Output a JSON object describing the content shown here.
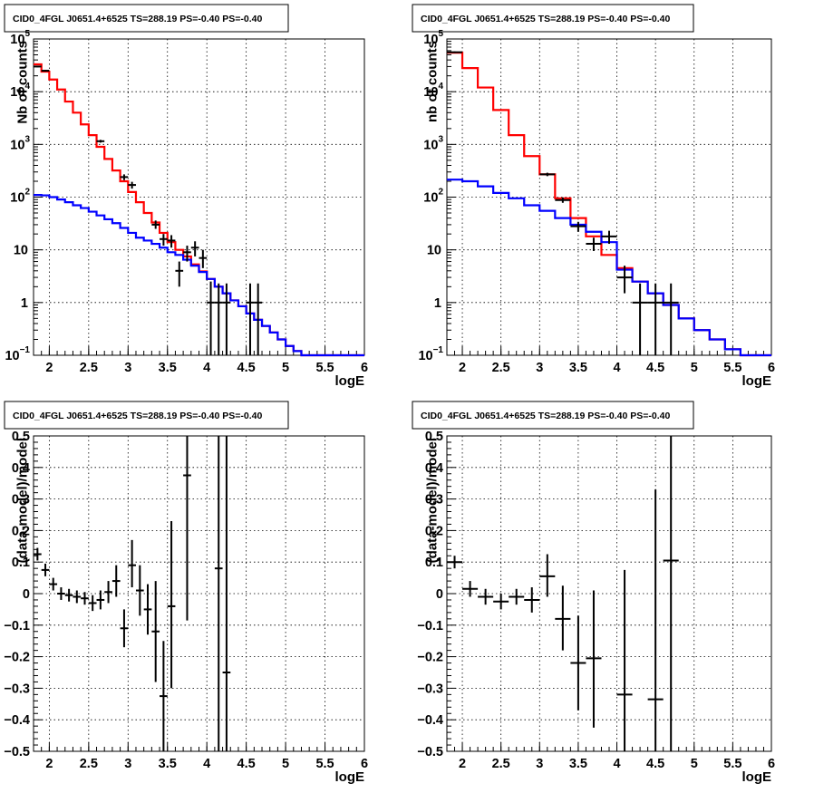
{
  "colors": {
    "data": "#000000",
    "total_model": "#ff0000",
    "source_model": "#0000ff",
    "grid": "#000000"
  },
  "chart_data": [
    {
      "id": "counts-left",
      "type": "line",
      "title": "CID0_4FGL J0651.4+6525 TS=288.19 PS=-0.40 PS=-0.40",
      "xlabel": "logE",
      "ylabel": "Nb of counts",
      "xlim": [
        1.8,
        6
      ],
      "ylim": [
        0.1,
        100000
      ],
      "yscale": "log",
      "grid": true,
      "xticks": [
        "2",
        "2.5",
        "3",
        "3.5",
        "4",
        "4.5",
        "5",
        "5.5",
        "6"
      ],
      "yticks": [
        {
          "value": 0.1,
          "base": "10",
          "exp": "−1"
        },
        {
          "value": 1,
          "label": "1"
        },
        {
          "value": 10,
          "label": "10"
        },
        {
          "value": 100,
          "base": "10",
          "exp": "2"
        },
        {
          "value": 1000,
          "base": "10",
          "exp": "3"
        },
        {
          "value": 10000,
          "base": "10",
          "exp": "4"
        },
        {
          "value": 100000,
          "base": "10",
          "exp": "5"
        }
      ],
      "steps": [
        {
          "name": "total-model",
          "color": "#ff0000",
          "edges": [
            1.8,
            1.9,
            2.0,
            2.1,
            2.2,
            2.3,
            2.4,
            2.5,
            2.6,
            2.7,
            2.8,
            2.9,
            3.0,
            3.1,
            3.2,
            3.3,
            3.4,
            3.5,
            3.6,
            3.7,
            3.8,
            3.9,
            4.0,
            4.1,
            4.2,
            4.3,
            4.4,
            4.5,
            4.6,
            4.7,
            4.8,
            4.9,
            5.0,
            5.1,
            5.2,
            5.3,
            5.4,
            5.5,
            5.6,
            5.7,
            5.8,
            5.9,
            6.0
          ],
          "values": [
            33000,
            24000,
            17000,
            11000,
            6500,
            4000,
            2400,
            1500,
            900,
            530,
            320,
            200,
            125,
            80,
            50,
            33,
            21,
            14,
            10,
            7.5,
            5.3,
            3.9,
            2.8,
            2.0,
            1.5,
            1.1,
            0.85,
            0.62,
            0.47,
            0.36,
            0.27,
            0.2,
            0.15,
            0.12,
            0.1,
            0.1,
            0.1,
            0.1,
            0.1,
            0.1,
            0.1,
            0.1
          ]
        },
        {
          "name": "source-model",
          "color": "#0000ff",
          "edges": [
            1.8,
            1.9,
            2.0,
            2.1,
            2.2,
            2.3,
            2.4,
            2.5,
            2.6,
            2.7,
            2.8,
            2.9,
            3.0,
            3.1,
            3.2,
            3.3,
            3.4,
            3.5,
            3.6,
            3.7,
            3.8,
            3.9,
            4.0,
            4.1,
            4.2,
            4.3,
            4.4,
            4.5,
            4.6,
            4.7,
            4.8,
            4.9,
            5.0,
            5.1,
            5.2,
            5.3,
            5.4,
            5.5,
            5.6,
            5.7,
            5.8,
            5.9,
            6.0
          ],
          "values": [
            110,
            108,
            100,
            90,
            80,
            70,
            62,
            53,
            45,
            38,
            32,
            26,
            21,
            17,
            15,
            13,
            11,
            9,
            8,
            6.5,
            5,
            3.8,
            2.8,
            2.0,
            1.5,
            1.1,
            0.85,
            0.62,
            0.47,
            0.36,
            0.27,
            0.2,
            0.15,
            0.12,
            0.1,
            0.1,
            0.1,
            0.1,
            0.1,
            0.1,
            0.1,
            0.1
          ]
        }
      ],
      "points": [
        {
          "x": 1.85,
          "y": 30000,
          "ylo": 29000,
          "yhi": 31000
        },
        {
          "x": 1.95,
          "y": 25000,
          "ylo": 24000,
          "yhi": 26000
        },
        {
          "x": 2.65,
          "y": 1150,
          "ylo": 1080,
          "yhi": 1220
        },
        {
          "x": 2.95,
          "y": 240,
          "ylo": 210,
          "yhi": 270
        },
        {
          "x": 3.05,
          "y": 170,
          "ylo": 145,
          "yhi": 195
        },
        {
          "x": 3.35,
          "y": 30,
          "ylo": 25,
          "yhi": 36
        },
        {
          "x": 3.45,
          "y": 16,
          "ylo": 12,
          "yhi": 20
        },
        {
          "x": 3.55,
          "y": 15,
          "ylo": 11,
          "yhi": 19
        },
        {
          "x": 3.65,
          "y": 4,
          "ylo": 2,
          "yhi": 6
        },
        {
          "x": 3.75,
          "y": 9,
          "ylo": 6,
          "yhi": 12
        },
        {
          "x": 3.85,
          "y": 11,
          "ylo": 7.5,
          "yhi": 14.5
        },
        {
          "x": 3.95,
          "y": 7,
          "ylo": 4.5,
          "yhi": 10
        },
        {
          "x": 4.05,
          "y": 1,
          "ylo": 0.1,
          "yhi": 2.5
        },
        {
          "x": 4.15,
          "y": 1,
          "ylo": 0.1,
          "yhi": 2.3
        },
        {
          "x": 4.25,
          "y": 1,
          "ylo": 0.1,
          "yhi": 2.3
        },
        {
          "x": 4.55,
          "y": 1,
          "ylo": 0.1,
          "yhi": 2.3
        },
        {
          "x": 4.65,
          "y": 1,
          "ylo": 0.1,
          "yhi": 2.3
        }
      ]
    },
    {
      "id": "counts-right",
      "type": "line",
      "title": "CID0_4FGL J0651.4+6525 TS=288.19 PS=-0.40 PS=-0.40",
      "xlabel": "logE",
      "ylabel": "nb of counts",
      "xlim": [
        1.8,
        6
      ],
      "ylim": [
        0.1,
        100000
      ],
      "yscale": "log",
      "grid": true,
      "xticks": [
        "2",
        "2.5",
        "3",
        "3.5",
        "4",
        "4.5",
        "5",
        "5.5",
        "6"
      ],
      "yticks": [
        {
          "value": 0.1,
          "base": "10",
          "exp": "−1"
        },
        {
          "value": 1,
          "label": "1"
        },
        {
          "value": 10,
          "label": "10"
        },
        {
          "value": 100,
          "base": "10",
          "exp": "2"
        },
        {
          "value": 1000,
          "base": "10",
          "exp": "3"
        },
        {
          "value": 10000,
          "base": "10",
          "exp": "4"
        },
        {
          "value": 100000,
          "base": "10",
          "exp": "5"
        }
      ],
      "steps": [
        {
          "name": "total-model",
          "color": "#ff0000",
          "edges": [
            1.8,
            2.0,
            2.2,
            2.4,
            2.6,
            2.8,
            3.0,
            3.2,
            3.4,
            3.6,
            3.8,
            4.0,
            4.2,
            4.4,
            4.6,
            4.8,
            5.0,
            5.2,
            5.4,
            5.6,
            5.8,
            6.0
          ],
          "values": [
            55000,
            28000,
            12000,
            4500,
            1500,
            600,
            270,
            95,
            40,
            18,
            8,
            4.5,
            2.5,
            1.5,
            0.9,
            0.5,
            0.3,
            0.2,
            0.13,
            0.1,
            0.1
          ]
        },
        {
          "name": "source-model",
          "color": "#0000ff",
          "edges": [
            1.8,
            2.0,
            2.2,
            2.4,
            2.6,
            2.8,
            3.0,
            3.2,
            3.4,
            3.6,
            3.8,
            4.0,
            4.2,
            4.4,
            4.6,
            4.8,
            5.0,
            5.2,
            5.4,
            5.6,
            5.8,
            6.0
          ],
          "values": [
            215,
            200,
            160,
            120,
            95,
            70,
            55,
            40,
            30,
            22,
            14,
            4.2,
            2.5,
            1.5,
            0.9,
            0.5,
            0.3,
            0.2,
            0.13,
            0.1,
            0.1
          ]
        }
      ],
      "points": [
        {
          "x": 1.9,
          "y": 56000,
          "ylo": 54000,
          "yhi": 58000
        },
        {
          "x": 3.1,
          "y": 270,
          "ylo": 250,
          "yhi": 290
        },
        {
          "x": 3.3,
          "y": 88,
          "ylo": 78,
          "yhi": 98
        },
        {
          "x": 3.5,
          "y": 28,
          "ylo": 22,
          "yhi": 34
        },
        {
          "x": 3.7,
          "y": 13,
          "ylo": 9.5,
          "yhi": 17
        },
        {
          "x": 3.9,
          "y": 18,
          "ylo": 13,
          "yhi": 23
        },
        {
          "x": 4.1,
          "y": 3,
          "ylo": 1.5,
          "yhi": 5
        },
        {
          "x": 4.3,
          "y": 1,
          "ylo": 0.1,
          "yhi": 2.3
        },
        {
          "x": 4.5,
          "y": 1,
          "ylo": 0.1,
          "yhi": 2.3
        },
        {
          "x": 4.7,
          "y": 1,
          "ylo": 0.1,
          "yhi": 2.3
        }
      ]
    },
    {
      "id": "residual-left",
      "type": "scatter",
      "title": "CID0_4FGL J0651.4+6525 TS=288.19 PS=-0.40 PS=-0.40",
      "xlabel": "logE",
      "ylabel": "(data-model)/model",
      "xlim": [
        1.8,
        6
      ],
      "ylim": [
        -0.5,
        0.5
      ],
      "yscale": "linear",
      "grid": true,
      "xticks": [
        "2",
        "2.5",
        "3",
        "3.5",
        "4",
        "4.5",
        "5",
        "5.5",
        "6"
      ],
      "yticks": [
        "−0.5",
        "−0.4",
        "−0.3",
        "−0.2",
        "−0.1",
        "0",
        "0.1",
        "0.2",
        "0.3",
        "0.4",
        "0.5"
      ],
      "points": [
        {
          "x": 1.85,
          "y": 0.125,
          "ylo": 0.105,
          "yhi": 0.145,
          "xw": 0.05
        },
        {
          "x": 1.95,
          "y": 0.075,
          "ylo": 0.055,
          "yhi": 0.095,
          "xw": 0.05
        },
        {
          "x": 2.05,
          "y": 0.03,
          "ylo": 0.01,
          "yhi": 0.05,
          "xw": 0.05
        },
        {
          "x": 2.15,
          "y": 0.0,
          "ylo": -0.02,
          "yhi": 0.02,
          "xw": 0.05
        },
        {
          "x": 2.25,
          "y": -0.005,
          "ylo": -0.025,
          "yhi": 0.015,
          "xw": 0.05
        },
        {
          "x": 2.35,
          "y": -0.01,
          "ylo": -0.03,
          "yhi": 0.01,
          "xw": 0.05
        },
        {
          "x": 2.45,
          "y": -0.015,
          "ylo": -0.035,
          "yhi": 0.005,
          "xw": 0.05
        },
        {
          "x": 2.55,
          "y": -0.03,
          "ylo": -0.055,
          "yhi": -0.005,
          "xw": 0.05
        },
        {
          "x": 2.65,
          "y": -0.02,
          "ylo": -0.05,
          "yhi": 0.01,
          "xw": 0.05
        },
        {
          "x": 2.75,
          "y": 0.005,
          "ylo": -0.03,
          "yhi": 0.04,
          "xw": 0.05
        },
        {
          "x": 2.85,
          "y": 0.04,
          "ylo": -0.01,
          "yhi": 0.09,
          "xw": 0.05
        },
        {
          "x": 2.95,
          "y": -0.11,
          "ylo": -0.17,
          "yhi": -0.05,
          "xw": 0.05
        },
        {
          "x": 3.05,
          "y": 0.09,
          "ylo": 0.02,
          "yhi": 0.17,
          "xw": 0.05
        },
        {
          "x": 3.15,
          "y": 0.01,
          "ylo": -0.07,
          "yhi": 0.09,
          "xw": 0.05
        },
        {
          "x": 3.25,
          "y": -0.05,
          "ylo": -0.13,
          "yhi": 0.03,
          "xw": 0.05
        },
        {
          "x": 3.35,
          "y": -0.12,
          "ylo": -0.28,
          "yhi": 0.04,
          "xw": 0.05
        },
        {
          "x": 3.45,
          "y": -0.325,
          "ylo": -0.5,
          "yhi": -0.15,
          "xw": 0.05
        },
        {
          "x": 3.55,
          "y": -0.04,
          "ylo": -0.3,
          "yhi": 0.23,
          "xw": 0.05
        },
        {
          "x": 3.75,
          "y": 0.375,
          "ylo": -0.085,
          "yhi": 0.5,
          "xw": 0.05
        },
        {
          "x": 4.15,
          "y": 0.08,
          "ylo": -0.5,
          "yhi": 0.5,
          "xw": 0.05
        },
        {
          "x": 4.25,
          "y": -0.25,
          "ylo": -0.5,
          "yhi": 0.5,
          "xw": 0.05
        }
      ]
    },
    {
      "id": "residual-right",
      "type": "scatter",
      "title": "CID0_4FGL J0651.4+6525 TS=288.19 PS=-0.40 PS=-0.40",
      "xlabel": "logE",
      "ylabel": "(data-model)/model",
      "xlim": [
        1.8,
        6
      ],
      "ylim": [
        -0.5,
        0.5
      ],
      "yscale": "linear",
      "grid": true,
      "xticks": [
        "2",
        "2.5",
        "3",
        "3.5",
        "4",
        "4.5",
        "5",
        "5.5",
        "6"
      ],
      "yticks": [
        "−0.5",
        "−0.4",
        "−0.3",
        "−0.2",
        "−0.1",
        "0",
        "0.1",
        "0.2",
        "0.3",
        "0.4",
        "0.5"
      ],
      "points": [
        {
          "x": 1.9,
          "y": 0.1,
          "ylo": 0.08,
          "yhi": 0.12,
          "xw": 0.1
        },
        {
          "x": 2.1,
          "y": 0.015,
          "ylo": -0.01,
          "yhi": 0.04,
          "xw": 0.1
        },
        {
          "x": 2.3,
          "y": -0.01,
          "ylo": -0.035,
          "yhi": 0.015,
          "xw": 0.1
        },
        {
          "x": 2.5,
          "y": -0.025,
          "ylo": -0.05,
          "yhi": 0.0,
          "xw": 0.1
        },
        {
          "x": 2.7,
          "y": -0.01,
          "ylo": -0.035,
          "yhi": 0.015,
          "xw": 0.1
        },
        {
          "x": 2.9,
          "y": -0.02,
          "ylo": -0.06,
          "yhi": 0.02,
          "xw": 0.1
        },
        {
          "x": 3.1,
          "y": 0.055,
          "ylo": -0.01,
          "yhi": 0.125,
          "xw": 0.1
        },
        {
          "x": 3.3,
          "y": -0.08,
          "ylo": -0.18,
          "yhi": 0.025,
          "xw": 0.1
        },
        {
          "x": 3.5,
          "y": -0.22,
          "ylo": -0.37,
          "yhi": -0.07,
          "xw": 0.1
        },
        {
          "x": 3.7,
          "y": -0.205,
          "ylo": -0.425,
          "yhi": 0.01,
          "xw": 0.1
        },
        {
          "x": 4.1,
          "y": -0.32,
          "ylo": -0.5,
          "yhi": 0.075,
          "xw": 0.1
        },
        {
          "x": 4.5,
          "y": -0.335,
          "ylo": -0.5,
          "yhi": 0.33,
          "xw": 0.1
        },
        {
          "x": 4.7,
          "y": 0.105,
          "ylo": -0.5,
          "yhi": 0.5,
          "xw": 0.1
        }
      ]
    }
  ]
}
